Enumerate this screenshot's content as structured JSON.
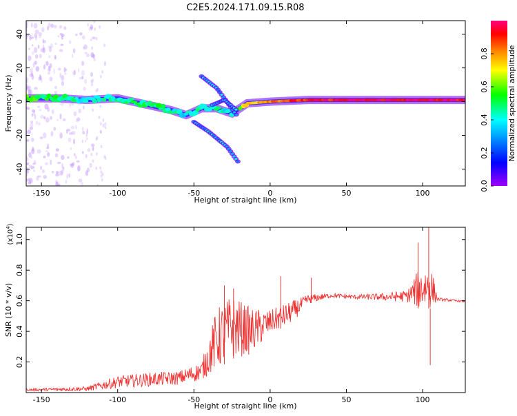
{
  "title": "C2E5.2024.171.09.15.R08",
  "chart_data": [
    {
      "type": "heatmap",
      "title": "C2E5.2024.171.09.15.R08",
      "xlabel": "Height of straight line (km)",
      "ylabel": "Frequency (Hz)",
      "xlim": [
        -160,
        128
      ],
      "ylim": [
        -50,
        48
      ],
      "xticks": [
        -150,
        -100,
        -50,
        0,
        50,
        100
      ],
      "yticks": [
        -40,
        -20,
        0,
        20,
        40
      ],
      "colorbar": {
        "label": "Normalized spectral amplitude",
        "range": [
          0,
          1
        ],
        "ticks": [
          0.0,
          0.2,
          0.4,
          0.6,
          0.8
        ],
        "colormap": [
          "#a000ff",
          "#0000ff",
          "#00ffff",
          "#00ff00",
          "#ffff00",
          "#ff8000",
          "#ff0000",
          "#ff0080"
        ]
      },
      "main_trace": [
        {
          "x": -158,
          "y": 2,
          "a": 0.55
        },
        {
          "x": -140,
          "y": 2,
          "a": 0.5
        },
        {
          "x": -120,
          "y": 1,
          "a": 0.4
        },
        {
          "x": -100,
          "y": 2,
          "a": 0.45
        },
        {
          "x": -80,
          "y": -2,
          "a": 0.5
        },
        {
          "x": -65,
          "y": -5,
          "a": 0.45
        },
        {
          "x": -55,
          "y": -8,
          "a": 0.4
        },
        {
          "x": -45,
          "y": -4,
          "a": 0.45
        },
        {
          "x": -35,
          "y": -4,
          "a": 0.45
        },
        {
          "x": -25,
          "y": -7,
          "a": 0.4
        },
        {
          "x": -15,
          "y": -1,
          "a": 0.75
        },
        {
          "x": 0,
          "y": 0,
          "a": 0.85
        },
        {
          "x": 25,
          "y": 1,
          "a": 0.9
        },
        {
          "x": 50,
          "y": 1,
          "a": 0.95
        },
        {
          "x": 75,
          "y": 1,
          "a": 0.95
        },
        {
          "x": 100,
          "y": 1,
          "a": 0.95
        },
        {
          "x": 128,
          "y": 1,
          "a": 0.95
        }
      ],
      "branches": [
        [
          {
            "x": -45,
            "y": 15
          },
          {
            "x": -35,
            "y": 8
          },
          {
            "x": -22,
            "y": -8
          }
        ],
        [
          {
            "x": -38,
            "y": -2
          },
          {
            "x": -30,
            "y": 1
          },
          {
            "x": -22,
            "y": -5
          }
        ],
        [
          {
            "x": -50,
            "y": -12
          },
          {
            "x": -40,
            "y": -18
          },
          {
            "x": -28,
            "y": -27
          },
          {
            "x": -20,
            "y": -37
          }
        ]
      ]
    },
    {
      "type": "line",
      "xlabel": "Height of straight line (km)",
      "ylabel": "SNR (10 * v/v)",
      "scale_label": "(x10",
      "scale_exp": "4",
      "xlim": [
        -160,
        128
      ],
      "ylim": [
        0,
        1.08
      ],
      "xticks": [
        -150,
        -100,
        -50,
        0,
        50,
        100
      ],
      "yticks": [
        0.2,
        0.4,
        0.6,
        0.8,
        1.0
      ],
      "color": "#ee3333",
      "envelope": [
        {
          "x": -160,
          "base": 0.01,
          "amp": 0.015
        },
        {
          "x": -120,
          "base": 0.01,
          "amp": 0.03
        },
        {
          "x": -100,
          "base": 0.03,
          "amp": 0.08
        },
        {
          "x": -80,
          "base": 0.04,
          "amp": 0.09
        },
        {
          "x": -60,
          "base": 0.05,
          "amp": 0.09
        },
        {
          "x": -45,
          "base": 0.08,
          "amp": 0.12
        },
        {
          "x": -35,
          "base": 0.15,
          "amp": 0.4
        },
        {
          "x": -25,
          "base": 0.22,
          "amp": 0.42
        },
        {
          "x": -12,
          "base": 0.25,
          "amp": 0.3
        },
        {
          "x": 0,
          "base": 0.38,
          "amp": 0.16
        },
        {
          "x": 15,
          "base": 0.46,
          "amp": 0.14
        },
        {
          "x": 25,
          "base": 0.58,
          "amp": 0.06
        },
        {
          "x": 40,
          "base": 0.62,
          "amp": 0.03
        },
        {
          "x": 55,
          "base": 0.61,
          "amp": 0.03
        },
        {
          "x": 75,
          "base": 0.6,
          "amp": 0.05
        },
        {
          "x": 90,
          "base": 0.59,
          "amp": 0.08
        },
        {
          "x": 97,
          "base": 0.55,
          "amp": 0.25
        },
        {
          "x": 105,
          "base": 0.55,
          "amp": 0.3
        },
        {
          "x": 110,
          "base": 0.6,
          "amp": 0.02
        },
        {
          "x": 128,
          "base": 0.59,
          "amp": 0.01
        }
      ],
      "spikes": [
        {
          "x": -30,
          "y": 0.7
        },
        {
          "x": -24,
          "y": 0.68
        },
        {
          "x": 7,
          "y": 0.76
        },
        {
          "x": 27,
          "y": 0.75
        },
        {
          "x": 97,
          "y": 0.98
        },
        {
          "x": 104,
          "y": 1.08
        },
        {
          "x": 105,
          "y": 0.18
        }
      ]
    }
  ]
}
